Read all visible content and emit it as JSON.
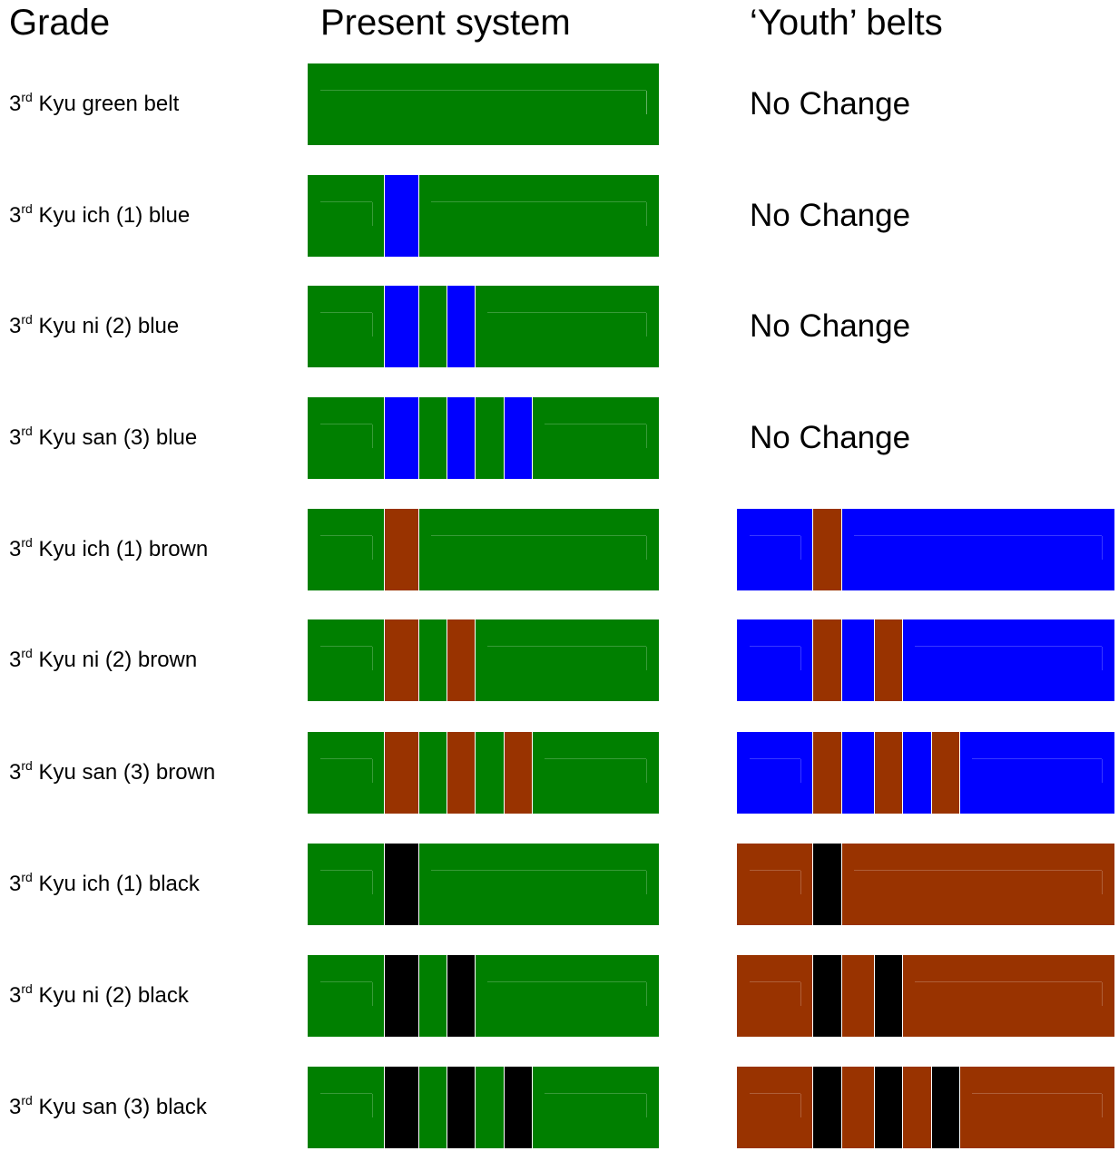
{
  "headers": {
    "grade": "Grade",
    "present": "Present system",
    "youth": "‘Youth’ belts"
  },
  "colors": {
    "green": "#007f00",
    "blue": "#0000ff",
    "brown": "#993300",
    "black": "#000000"
  },
  "rows": [
    {
      "prefix": "3",
      "sup": "rd",
      "label": " Kyu green belt",
      "present": {
        "base": "green",
        "stripe": null,
        "count": 0
      },
      "youth": null,
      "youth_text": "No Change"
    },
    {
      "prefix": "3",
      "sup": "rd",
      "label": " Kyu ich (1) blue",
      "present": {
        "base": "green",
        "stripe": "blue",
        "count": 1
      },
      "youth": null,
      "youth_text": "No Change"
    },
    {
      "prefix": "3",
      "sup": "rd",
      "label": " Kyu ni (2) blue",
      "present": {
        "base": "green",
        "stripe": "blue",
        "count": 2
      },
      "youth": null,
      "youth_text": "No Change"
    },
    {
      "prefix": "3",
      "sup": "rd",
      "label": " Kyu san (3) blue",
      "present": {
        "base": "green",
        "stripe": "blue",
        "count": 3
      },
      "youth": null,
      "youth_text": "No Change"
    },
    {
      "prefix": "3",
      "sup": "rd",
      "label": " Kyu ich (1) brown",
      "present": {
        "base": "green",
        "stripe": "brown",
        "count": 1
      },
      "youth": {
        "base": "blue",
        "stripe": "brown",
        "count": 1
      },
      "youth_text": ""
    },
    {
      "prefix": "3",
      "sup": "rd",
      "label": " Kyu ni (2) brown",
      "present": {
        "base": "green",
        "stripe": "brown",
        "count": 2
      },
      "youth": {
        "base": "blue",
        "stripe": "brown",
        "count": 2
      },
      "youth_text": ""
    },
    {
      "prefix": "3",
      "sup": "rd",
      "label": " Kyu san (3) brown",
      "present": {
        "base": "green",
        "stripe": "brown",
        "count": 3
      },
      "youth": {
        "base": "blue",
        "stripe": "brown",
        "count": 3
      },
      "youth_text": ""
    },
    {
      "prefix": "3",
      "sup": "rd",
      "label": " Kyu ich (1) black",
      "present": {
        "base": "green",
        "stripe": "black",
        "count": 1
      },
      "youth": {
        "base": "brown",
        "stripe": "black",
        "count": 1
      },
      "youth_text": ""
    },
    {
      "prefix": "3",
      "sup": "rd",
      "label": " Kyu ni (2) black",
      "present": {
        "base": "green",
        "stripe": "black",
        "count": 2
      },
      "youth": {
        "base": "brown",
        "stripe": "black",
        "count": 2
      },
      "youth_text": ""
    },
    {
      "prefix": "3",
      "sup": "rd",
      "label": " Kyu san (3) black",
      "present": {
        "base": "green",
        "stripe": "black",
        "count": 3
      },
      "youth": {
        "base": "brown",
        "stripe": "black",
        "count": 3
      },
      "youth_text": ""
    }
  ]
}
